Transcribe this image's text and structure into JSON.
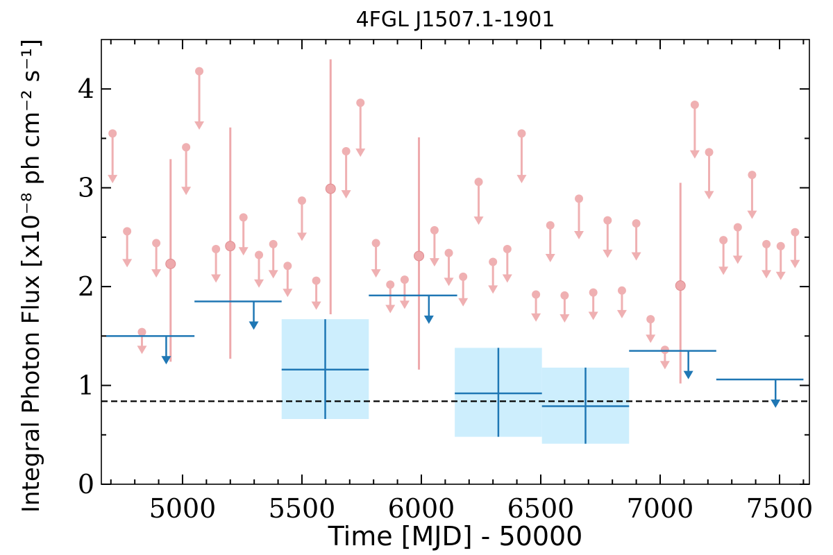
{
  "chart_data": {
    "type": "scatter",
    "title": "4FGL J1507.1-1901",
    "xlabel": "Time [MJD] - 50000",
    "ylabel": "Integral Photon Flux [x10⁻⁸ ph cm⁻² s⁻¹]",
    "xlim": [
      4660,
      7625
    ],
    "ylim": [
      0,
      4.5
    ],
    "x_ticks": [
      5000,
      5500,
      6000,
      6500,
      7000,
      7500
    ],
    "y_ticks": [
      0,
      1,
      2,
      3,
      4
    ],
    "reference_line": 0.84,
    "short_bins": {
      "upper_limits": [
        [
          4707,
          3.55
        ],
        [
          4768,
          2.56
        ],
        [
          4830,
          1.54
        ],
        [
          4890,
          2.44
        ],
        [
          5070,
          4.18
        ],
        [
          5015,
          3.41
        ],
        [
          5140,
          2.38
        ],
        [
          5255,
          2.7
        ],
        [
          5320,
          2.32
        ],
        [
          5380,
          2.43
        ],
        [
          5440,
          2.21
        ],
        [
          5500,
          2.87
        ],
        [
          5560,
          2.06
        ],
        [
          5685,
          3.37
        ],
        [
          5745,
          3.86
        ],
        [
          5810,
          2.44
        ],
        [
          5870,
          2.02
        ],
        [
          5930,
          2.07
        ],
        [
          6055,
          2.57
        ],
        [
          6115,
          2.34
        ],
        [
          6175,
          2.1
        ],
        [
          6240,
          3.06
        ],
        [
          6300,
          2.25
        ],
        [
          6360,
          2.38
        ],
        [
          6420,
          3.55
        ],
        [
          6480,
          1.92
        ],
        [
          6540,
          2.62
        ],
        [
          6600,
          1.91
        ],
        [
          6660,
          2.89
        ],
        [
          6720,
          1.94
        ],
        [
          6780,
          2.67
        ],
        [
          6840,
          1.96
        ],
        [
          6900,
          2.64
        ],
        [
          6960,
          1.67
        ],
        [
          7020,
          1.36
        ],
        [
          7145,
          3.84
        ],
        [
          7205,
          3.36
        ],
        [
          7265,
          2.47
        ],
        [
          7325,
          2.6
        ],
        [
          7385,
          3.13
        ],
        [
          7445,
          2.43
        ],
        [
          7505,
          2.41
        ],
        [
          7565,
          2.55
        ]
      ],
      "detections": [
        [
          4950,
          2.23,
          1.24,
          3.29
        ],
        [
          5200,
          2.41,
          1.27,
          3.61
        ],
        [
          5620,
          2.99,
          1.72,
          4.3
        ],
        [
          5990,
          2.31,
          1.16,
          3.51
        ],
        [
          7085,
          2.01,
          1.02,
          3.05
        ]
      ]
    },
    "long_bins": {
      "upper_limits": [
        [
          4680,
          5050,
          1.5
        ],
        [
          5050,
          5415,
          1.85
        ],
        [
          5780,
          6150,
          1.91
        ],
        [
          6870,
          7235,
          1.35
        ],
        [
          7235,
          7600,
          1.06
        ]
      ],
      "detections": [
        [
          5415,
          5780,
          1.16,
          0.66,
          1.67
        ],
        [
          6140,
          6505,
          0.92,
          0.48,
          1.38
        ],
        [
          6505,
          6870,
          0.79,
          0.41,
          1.18
        ]
      ]
    },
    "colors": {
      "short": "#e8868a",
      "long": "#1f77b4",
      "band": "#cdeefd",
      "reference": "#000000"
    }
  }
}
